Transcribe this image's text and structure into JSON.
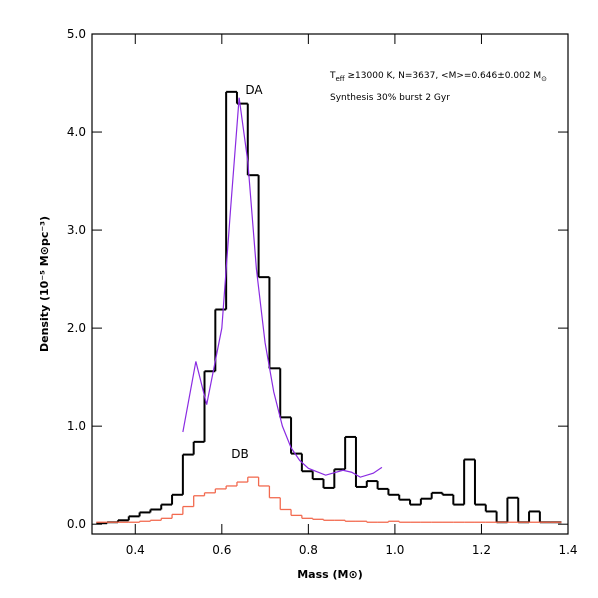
{
  "chart_data": {
    "type": "histogram",
    "xlabel": "Mass (M⊙)",
    "ylabel": "Density (10⁻⁵ M⊙pc⁻³)",
    "annotation_parts": [
      "T",
      "eff",
      " ≥13000 K, N=3637, <M>=0.646±0.002 M",
      "⊙"
    ],
    "xlim": [
      0.3,
      1.4
    ],
    "ylim": [
      -0.1,
      5.0
    ],
    "xticks": [
      0.4,
      0.6,
      0.8,
      {
        "value": 1.0,
        "label": "1.0"
      },
      1.2,
      1.4
    ],
    "yticks": [
      {
        "value": 0,
        "label": "0.0"
      },
      {
        "value": 1,
        "label": "1.0"
      },
      {
        "value": 2,
        "label": "2.0"
      },
      {
        "value": 3,
        "label": "3.0"
      },
      {
        "value": 4,
        "label": "4.0"
      },
      {
        "value": 5,
        "label": "5.0"
      }
    ],
    "bins": [
      0.31,
      0.335,
      0.36,
      0.385,
      0.41,
      0.435,
      0.46,
      0.485,
      0.51,
      0.535,
      0.56,
      0.585,
      0.61,
      0.635,
      0.66,
      0.685,
      0.71,
      0.735,
      0.76,
      0.785,
      0.81,
      0.835,
      0.86,
      0.885,
      0.91,
      0.935,
      0.96,
      0.985,
      1.01,
      1.035,
      1.06,
      1.085,
      1.11,
      1.135,
      1.16,
      1.185,
      1.21,
      1.235,
      1.26,
      1.285,
      1.31,
      1.335,
      1.36,
      1.385
    ],
    "series": [
      {
        "name": "DA",
        "color": "#000000",
        "values": [
          0.01,
          0.02,
          0.04,
          0.08,
          0.12,
          0.15,
          0.2,
          0.3,
          0.71,
          0.84,
          1.56,
          2.19,
          4.41,
          4.29,
          3.56,
          2.52,
          1.59,
          1.09,
          0.72,
          0.54,
          0.46,
          0.37,
          0.56,
          0.89,
          0.38,
          0.44,
          0.36,
          0.3,
          0.25,
          0.2,
          0.26,
          0.32,
          0.3,
          0.2,
          0.66,
          0.2,
          0.13,
          0.02,
          0.27,
          0.02,
          0.13,
          0.02,
          0.02
        ]
      },
      {
        "name": "DB",
        "color": "#f26a4f",
        "values": [
          0.02,
          0.02,
          0.02,
          0.02,
          0.03,
          0.04,
          0.06,
          0.1,
          0.18,
          0.29,
          0.32,
          0.36,
          0.39,
          0.43,
          0.48,
          0.39,
          0.27,
          0.15,
          0.09,
          0.06,
          0.05,
          0.04,
          0.04,
          0.03,
          0.03,
          0.02,
          0.02,
          0.03,
          0.02,
          0.02,
          0.02,
          0.02,
          0.02,
          0.02,
          0.02,
          0.02,
          0.02,
          0.02,
          0.02,
          0.02,
          0.02,
          0.02,
          0.02
        ]
      }
    ],
    "lines": [
      {
        "name": "Synthesis 30% burst 2 Gyr",
        "color": "#8a2be2",
        "x": [
          0.51,
          0.54,
          0.565,
          0.6,
          0.62,
          0.64,
          0.66,
          0.68,
          0.7,
          0.72,
          0.74,
          0.76,
          0.78,
          0.8,
          0.84,
          0.88,
          0.9,
          0.92,
          0.95,
          0.97
        ],
        "values": [
          0.94,
          1.66,
          1.22,
          2.0,
          3.2,
          4.35,
          3.7,
          2.6,
          1.85,
          1.35,
          1.0,
          0.78,
          0.65,
          0.57,
          0.5,
          0.55,
          0.53,
          0.48,
          0.52,
          0.58
        ]
      }
    ]
  }
}
